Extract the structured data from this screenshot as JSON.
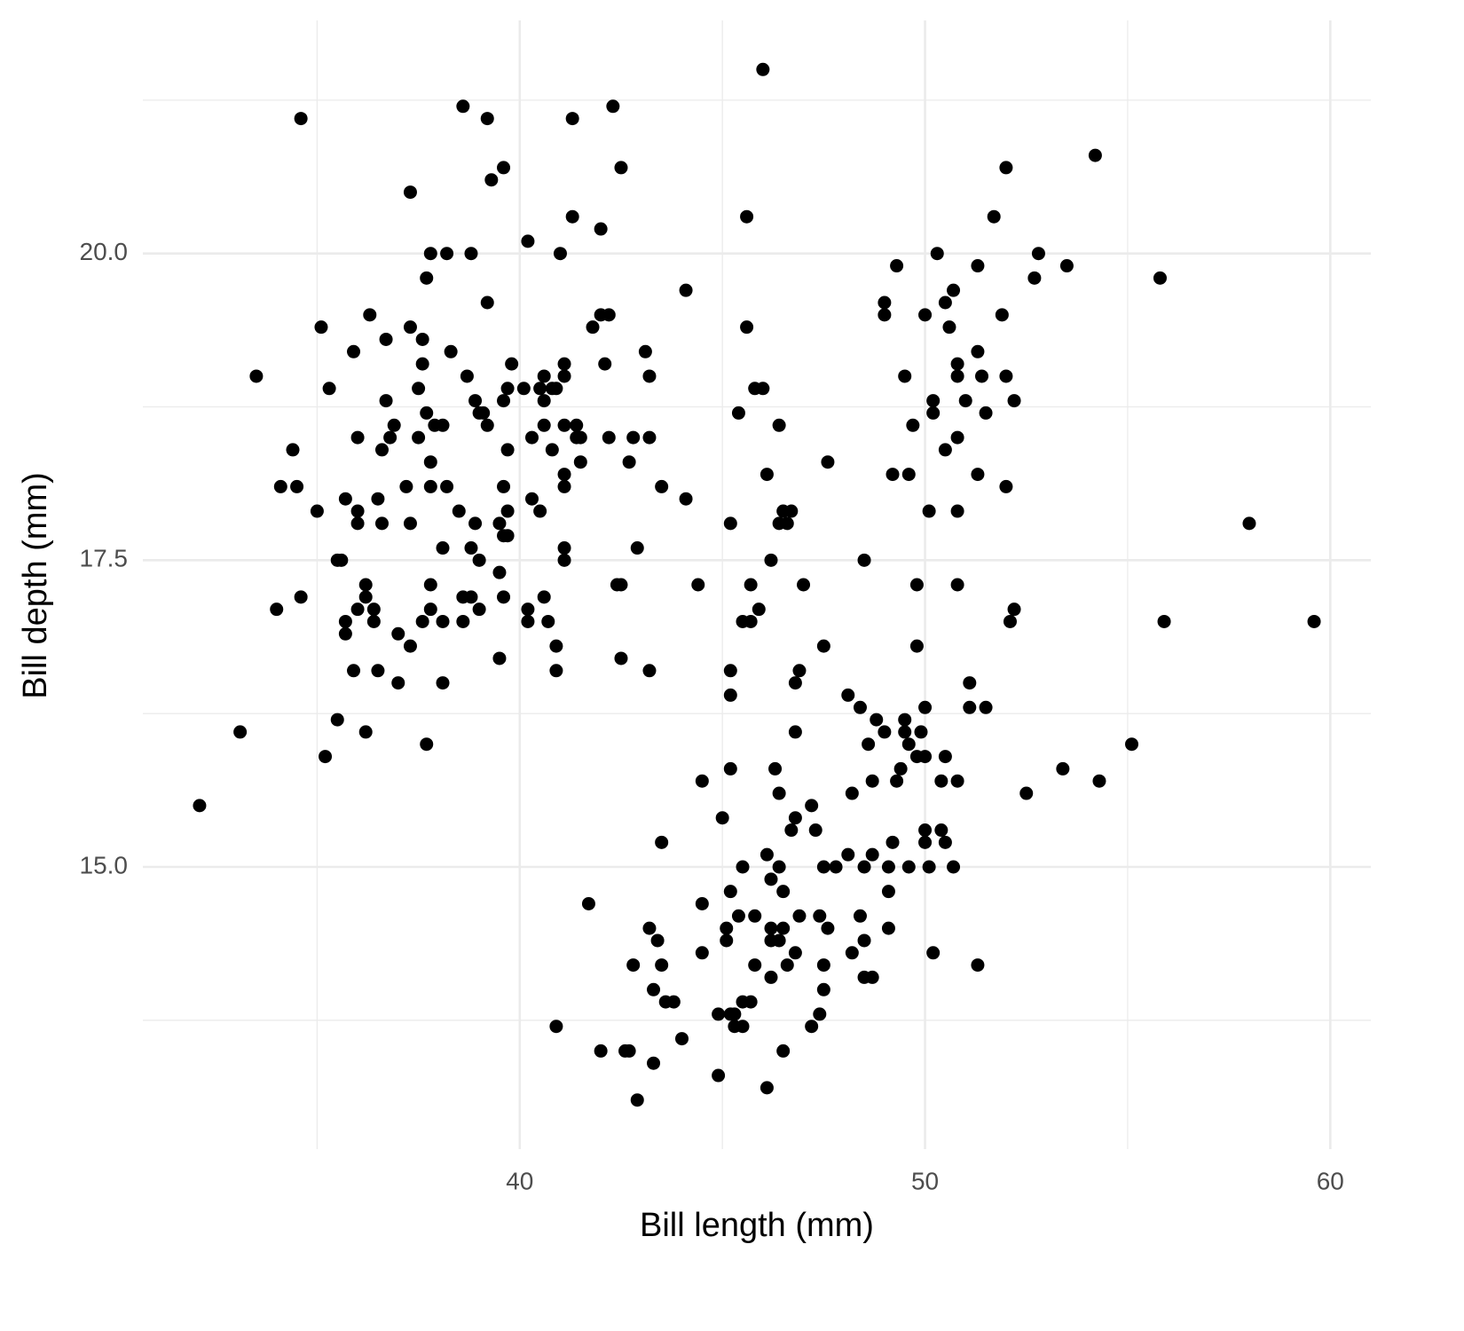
{
  "chart_data": {
    "type": "scatter",
    "x_label": "Bill length (mm)",
    "y_label": "Bill depth (mm)",
    "color": "#000000",
    "grid": true,
    "xlim": [
      30.7,
      61.0
    ],
    "ylim": [
      12.7,
      21.9
    ],
    "xticks": [
      40,
      50,
      60
    ],
    "yticks": [
      {
        "value": 15,
        "label": "15.0"
      },
      17.5,
      {
        "value": 20,
        "label": "20.0"
      }
    ],
    "x_minor_ticks": [
      35,
      45,
      55
    ],
    "y_minor_ticks": [
      13.75,
      16.25,
      18.75,
      21.25
    ],
    "x": [
      46.0,
      38.6,
      42.3,
      34.6,
      39.2,
      41.3,
      54.2,
      39.6,
      42.5,
      52.0,
      39.3,
      37.3,
      41.3,
      45.6,
      51.7,
      42.0,
      40.2,
      37.8,
      38.2,
      38.8,
      41.0,
      50.3,
      52.8,
      49.3,
      51.3,
      53.5,
      37.7,
      52.7,
      55.8,
      44.1,
      50.7,
      39.2,
      49.0,
      50.5,
      36.3,
      42.0,
      42.2,
      49.0,
      50.0,
      51.9,
      35.1,
      37.3,
      41.8,
      45.6,
      50.6,
      36.7,
      37.6,
      35.9,
      38.3,
      43.1,
      51.3,
      37.6,
      39.8,
      41.1,
      42.1,
      50.8,
      33.5,
      38.7,
      40.6,
      41.1,
      43.2,
      49.5,
      50.8,
      51.4,
      52.0,
      35.3,
      37.5,
      39.7,
      40.1,
      40.5,
      40.8,
      40.9,
      45.8,
      46.0,
      36.7,
      38.9,
      39.6,
      40.6,
      50.2,
      51.0,
      52.2,
      37.7,
      39.0,
      39.1,
      45.4,
      50.2,
      51.5,
      36.9,
      37.9,
      38.1,
      39.2,
      40.6,
      41.1,
      41.4,
      46.4,
      49.7,
      36.0,
      36.8,
      37.5,
      40.3,
      41.4,
      41.5,
      42.2,
      42.8,
      43.2,
      50.8,
      34.4,
      36.6,
      39.7,
      40.8,
      50.5,
      37.8,
      41.5,
      42.7,
      47.6,
      41.1,
      46.1,
      49.2,
      49.6,
      51.3,
      34.1,
      34.5,
      37.2,
      37.8,
      38.2,
      39.6,
      41.1,
      43.5,
      52.0,
      35.7,
      36.5,
      40.3,
      44.1,
      35.0,
      36.0,
      38.5,
      39.7,
      40.5,
      46.5,
      46.7,
      50.1,
      50.8,
      36.0,
      36.6,
      37.3,
      38.9,
      39.5,
      45.2,
      46.4,
      46.6,
      58.0,
      39.6,
      39.7,
      38.1,
      38.8,
      41.1,
      42.9,
      35.5,
      35.6,
      39.0,
      41.1,
      46.2,
      48.5,
      39.5,
      36.2,
      37.8,
      42.4,
      42.5,
      44.4,
      45.7,
      47.0,
      49.8,
      50.8,
      34.6,
      36.2,
      38.6,
      38.8,
      39.6,
      40.6,
      34.0,
      36.0,
      36.4,
      37.8,
      39.0,
      40.2,
      45.9,
      52.2,
      35.7,
      36.4,
      37.6,
      38.1,
      38.6,
      40.2,
      40.7,
      45.5,
      45.7,
      52.1,
      55.9,
      59.6,
      35.7,
      37.0,
      37.3,
      40.9,
      47.5,
      49.8,
      39.5,
      42.5,
      35.9,
      36.5,
      40.9,
      43.2,
      45.2,
      46.9,
      37.0,
      38.1,
      46.8,
      51.1,
      45.2,
      48.1,
      48.4,
      50.0,
      51.1,
      51.5,
      35.5,
      48.8,
      49.5,
      33.1,
      36.2,
      46.8,
      49.0,
      49.5,
      49.9,
      37.7,
      48.6,
      49.6,
      55.1,
      35.2,
      49.8,
      50.0,
      50.5,
      45.2,
      46.3,
      49.4,
      53.4,
      44.5,
      48.7,
      49.3,
      50.4,
      50.8,
      54.3,
      46.4,
      48.2,
      52.5,
      32.1,
      47.2,
      45.0,
      46.8,
      46.7,
      47.3,
      50.0,
      50.4,
      43.5,
      49.2,
      50.0,
      50.5,
      46.1,
      48.1,
      48.7,
      45.5,
      46.4,
      47.5,
      47.8,
      48.5,
      49.1,
      49.6,
      50.1,
      50.7,
      46.2,
      45.2,
      46.5,
      49.1,
      41.7,
      44.5,
      45.4,
      45.8,
      46.9,
      47.4,
      48.4,
      43.2,
      45.1,
      46.2,
      46.5,
      47.6,
      49.1,
      43.4,
      45.1,
      46.2,
      46.4,
      48.5,
      44.5,
      46.8,
      48.2,
      50.2,
      42.8,
      43.5,
      45.8,
      46.6,
      47.5,
      51.3,
      46.2,
      48.5,
      48.7,
      43.3,
      47.5,
      43.6,
      43.8,
      45.5,
      45.7,
      44.9,
      45.2,
      45.3,
      47.4,
      40.9,
      45.3,
      45.5,
      47.2,
      44.0,
      42.0,
      42.6,
      42.7,
      46.5,
      43.3,
      44.9,
      46.1,
      42.9
    ],
    "values": [
      21.5,
      21.2,
      21.2,
      21.1,
      21.1,
      21.1,
      20.8,
      20.7,
      20.7,
      20.7,
      20.6,
      20.5,
      20.3,
      20.3,
      20.3,
      20.2,
      20.1,
      20.0,
      20.0,
      20.0,
      20.0,
      20.0,
      20.0,
      19.9,
      19.9,
      19.9,
      19.8,
      19.8,
      19.8,
      19.7,
      19.7,
      19.6,
      19.6,
      19.6,
      19.5,
      19.5,
      19.5,
      19.5,
      19.5,
      19.5,
      19.4,
      19.4,
      19.4,
      19.4,
      19.4,
      19.3,
      19.3,
      19.2,
      19.2,
      19.2,
      19.2,
      19.1,
      19.1,
      19.1,
      19.1,
      19.1,
      19.0,
      19.0,
      19.0,
      19.0,
      19.0,
      19.0,
      19.0,
      19.0,
      19.0,
      18.9,
      18.9,
      18.9,
      18.9,
      18.9,
      18.9,
      18.9,
      18.9,
      18.9,
      18.8,
      18.8,
      18.8,
      18.8,
      18.8,
      18.8,
      18.8,
      18.7,
      18.7,
      18.7,
      18.7,
      18.7,
      18.7,
      18.6,
      18.6,
      18.6,
      18.6,
      18.6,
      18.6,
      18.6,
      18.6,
      18.6,
      18.5,
      18.5,
      18.5,
      18.5,
      18.5,
      18.5,
      18.5,
      18.5,
      18.5,
      18.5,
      18.4,
      18.4,
      18.4,
      18.4,
      18.4,
      18.3,
      18.3,
      18.3,
      18.3,
      18.2,
      18.2,
      18.2,
      18.2,
      18.2,
      18.1,
      18.1,
      18.1,
      18.1,
      18.1,
      18.1,
      18.1,
      18.1,
      18.1,
      18.0,
      18.0,
      18.0,
      18.0,
      17.9,
      17.9,
      17.9,
      17.9,
      17.9,
      17.9,
      17.9,
      17.9,
      17.9,
      17.8,
      17.8,
      17.8,
      17.8,
      17.8,
      17.8,
      17.8,
      17.8,
      17.8,
      17.7,
      17.7,
      17.6,
      17.6,
      17.6,
      17.6,
      17.5,
      17.5,
      17.5,
      17.5,
      17.5,
      17.5,
      17.4,
      17.3,
      17.3,
      17.3,
      17.3,
      17.3,
      17.3,
      17.3,
      17.3,
      17.3,
      17.2,
      17.2,
      17.2,
      17.2,
      17.2,
      17.2,
      17.1,
      17.1,
      17.1,
      17.1,
      17.1,
      17.1,
      17.1,
      17.1,
      17.0,
      17.0,
      17.0,
      17.0,
      17.0,
      17.0,
      17.0,
      17.0,
      17.0,
      17.0,
      17.0,
      17.0,
      16.9,
      16.9,
      16.8,
      16.8,
      16.8,
      16.8,
      16.7,
      16.7,
      16.6,
      16.6,
      16.6,
      16.6,
      16.6,
      16.6,
      16.5,
      16.5,
      16.5,
      16.5,
      16.4,
      16.4,
      16.3,
      16.3,
      16.3,
      16.3,
      16.2,
      16.2,
      16.2,
      16.1,
      16.1,
      16.1,
      16.1,
      16.1,
      16.1,
      16.0,
      16.0,
      16.0,
      16.0,
      15.9,
      15.9,
      15.9,
      15.9,
      15.8,
      15.8,
      15.8,
      15.8,
      15.7,
      15.7,
      15.7,
      15.7,
      15.7,
      15.7,
      15.6,
      15.6,
      15.6,
      15.5,
      15.5,
      15.4,
      15.4,
      15.3,
      15.3,
      15.3,
      15.3,
      15.2,
      15.2,
      15.2,
      15.2,
      15.1,
      15.1,
      15.1,
      15.0,
      15.0,
      15.0,
      15.0,
      15.0,
      15.0,
      15.0,
      15.0,
      15.0,
      14.9,
      14.8,
      14.8,
      14.8,
      14.7,
      14.7,
      14.6,
      14.6,
      14.6,
      14.6,
      14.6,
      14.5,
      14.5,
      14.5,
      14.5,
      14.5,
      14.5,
      14.4,
      14.4,
      14.4,
      14.4,
      14.4,
      14.3,
      14.3,
      14.3,
      14.3,
      14.2,
      14.2,
      14.2,
      14.2,
      14.2,
      14.2,
      14.1,
      14.1,
      14.1,
      14.0,
      14.0,
      13.9,
      13.9,
      13.9,
      13.9,
      13.8,
      13.8,
      13.8,
      13.8,
      13.7,
      13.7,
      13.7,
      13.7,
      13.6,
      13.5,
      13.5,
      13.5,
      13.5,
      13.4,
      13.3,
      13.2,
      13.1
    ]
  }
}
